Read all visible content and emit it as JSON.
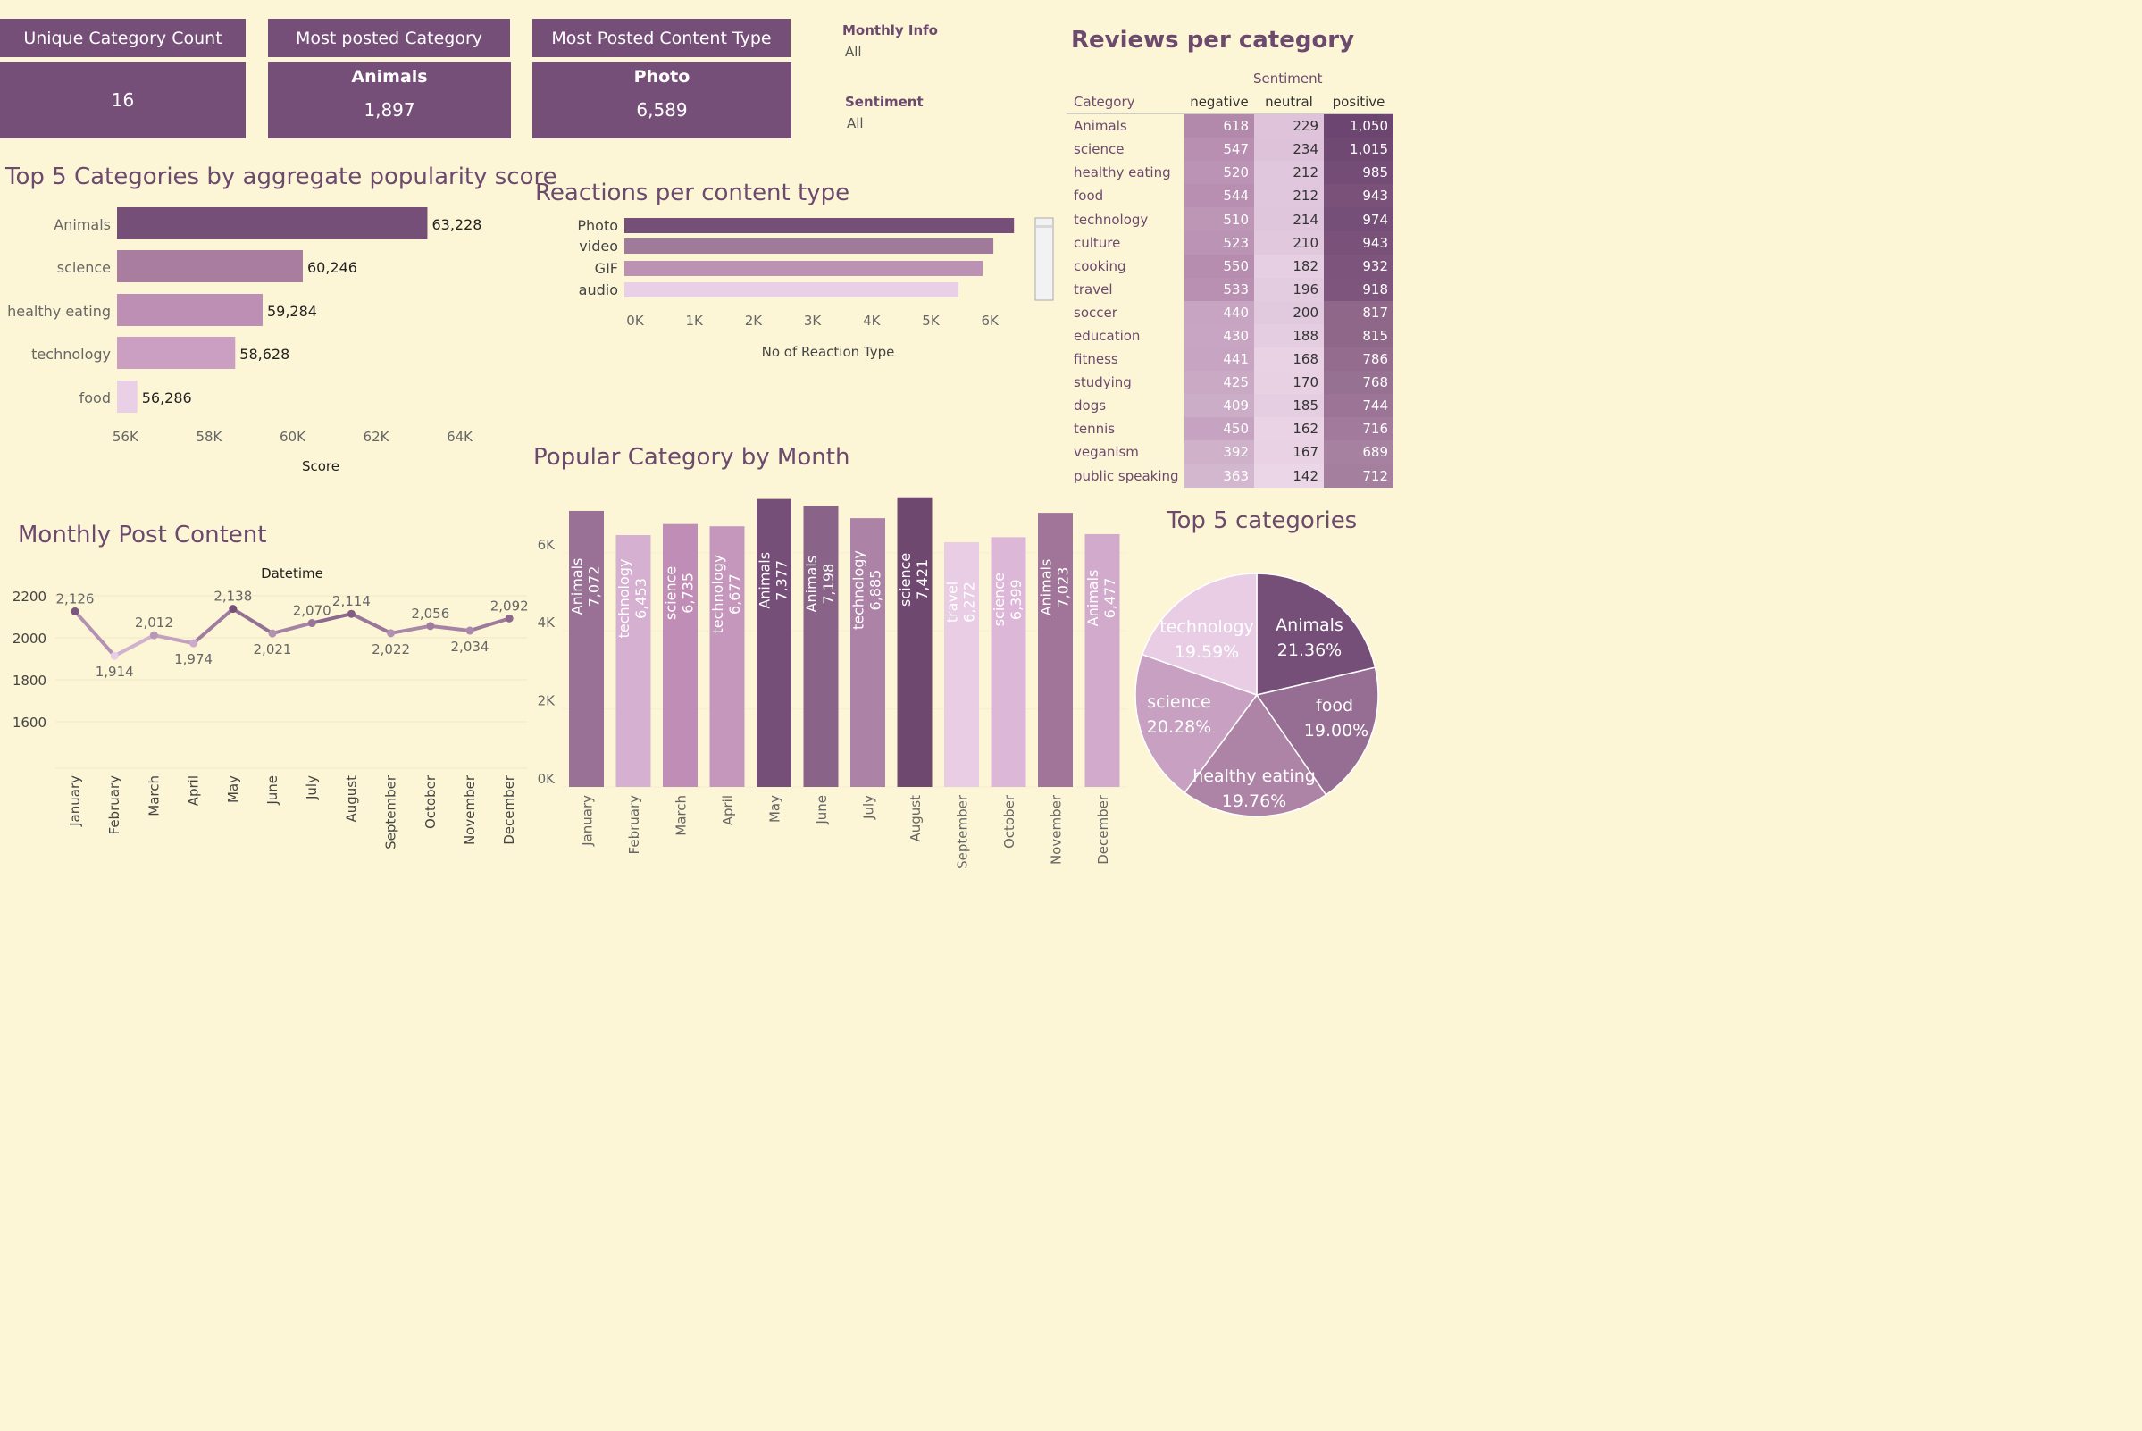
{
  "kpis": [
    {
      "header": "Unique Category Count",
      "label": "",
      "value": "16"
    },
    {
      "header": "Most posted Category",
      "label": "Animals",
      "value": "1,897"
    },
    {
      "header": "Most Posted Content Type",
      "label": "Photo",
      "value": "6,589"
    }
  ],
  "filters": [
    {
      "label": "Monthly Info",
      "value": "All"
    },
    {
      "label": "Sentiment",
      "value": "All"
    }
  ],
  "colors": {
    "background": "#fdf6d6",
    "dark": "#754f78",
    "title": "#6c4a6e",
    "light": "#e9cde5"
  },
  "chart_data": [
    {
      "id": "top5",
      "type": "bar",
      "orientation": "horizontal",
      "title": "Top 5 Categories by aggregate popularity score",
      "xlabel": "Score",
      "categories": [
        "Animals",
        "science",
        "healthy eating",
        "technology",
        "food"
      ],
      "values": [
        63228,
        60246,
        59284,
        58628,
        56286
      ],
      "value_labels": [
        "63,228",
        "60,246",
        "59,284",
        "58,628",
        "56,286"
      ],
      "xlim": [
        55800,
        64800
      ],
      "ticks": [
        56000,
        58000,
        60000,
        62000,
        64000
      ],
      "tick_labels": [
        "56K",
        "58K",
        "60K",
        "62K",
        "64K"
      ],
      "colors": [
        "#754f78",
        "#a87d9f",
        "#bd8fb4",
        "#cb9fc2",
        "#ead0e6"
      ]
    },
    {
      "id": "reactions",
      "type": "bar",
      "orientation": "horizontal",
      "title": "Reactions per content type",
      "xlabel": "No of Reaction Type",
      "categories": [
        "Photo",
        "video",
        "GIF",
        "audio"
      ],
      "values": [
        6589,
        6240,
        6060,
        5650
      ],
      "xlim": [
        0,
        6900
      ],
      "ticks": [
        0,
        1000,
        2000,
        3000,
        4000,
        5000,
        6000
      ],
      "tick_labels": [
        "0K",
        "1K",
        "2K",
        "3K",
        "4K",
        "5K",
        "6K"
      ],
      "colors": [
        "#754f78",
        "#a07a9b",
        "#bb92b3",
        "#ead0e6"
      ]
    },
    {
      "id": "reviews",
      "type": "table",
      "title": "Reviews per category",
      "column_group": "Sentiment",
      "columns": [
        "Category",
        "negative",
        "neutral",
        "positive"
      ],
      "rows": [
        [
          "Animals",
          "618",
          "229",
          "1,050"
        ],
        [
          "science",
          "547",
          "234",
          "1,015"
        ],
        [
          "healthy eating",
          "520",
          "212",
          "985"
        ],
        [
          "food",
          "544",
          "212",
          "943"
        ],
        [
          "technology",
          "510",
          "214",
          "974"
        ],
        [
          "culture",
          "523",
          "210",
          "943"
        ],
        [
          "cooking",
          "550",
          "182",
          "932"
        ],
        [
          "travel",
          "533",
          "196",
          "918"
        ],
        [
          "soccer",
          "440",
          "200",
          "817"
        ],
        [
          "education",
          "430",
          "188",
          "815"
        ],
        [
          "fitness",
          "441",
          "168",
          "786"
        ],
        [
          "studying",
          "425",
          "170",
          "768"
        ],
        [
          "dogs",
          "409",
          "185",
          "744"
        ],
        [
          "tennis",
          "450",
          "162",
          "716"
        ],
        [
          "veganism",
          "392",
          "167",
          "689"
        ],
        [
          "public speaking",
          "363",
          "142",
          "712"
        ]
      ]
    },
    {
      "id": "monthly",
      "type": "line",
      "title": "Monthly Post Content",
      "xlabel": "Datetime",
      "x": [
        "January",
        "February",
        "March",
        "April",
        "May",
        "June",
        "July",
        "August",
        "September",
        "October",
        "November",
        "December"
      ],
      "values": [
        2126,
        1914,
        2012,
        1974,
        2138,
        2021,
        2070,
        2114,
        2022,
        2056,
        2034,
        2092
      ],
      "value_labels": [
        "2,126",
        "1,914",
        "2,012",
        "1,974",
        "2,138",
        "2,021",
        "2,070",
        "2,114",
        "2,022",
        "2,056",
        "2,034",
        "2,092"
      ],
      "ylim": [
        1510,
        2250
      ],
      "ticks": [
        1600,
        1800,
        2000,
        2200
      ],
      "tick_labels": [
        "1600",
        "1800",
        "2000",
        "2200"
      ],
      "grid": true
    },
    {
      "id": "popular",
      "type": "bar",
      "title": "Popular Category by Month",
      "categories": [
        "January",
        "February",
        "March",
        "April",
        "May",
        "June",
        "July",
        "August",
        "September",
        "October",
        "November",
        "December"
      ],
      "bar_categories": [
        "Animals",
        "technology",
        "science",
        "technology",
        "Animals",
        "Animals",
        "technology",
        "science",
        "travel",
        "science",
        "Animals",
        "Animals"
      ],
      "values": [
        7072,
        6453,
        6735,
        6677,
        7377,
        7198,
        6885,
        7421,
        6272,
        6399,
        7023,
        6477
      ],
      "value_labels": [
        "7,072",
        "6,453",
        "6,735",
        "6,677",
        "7,377",
        "7,198",
        "6,885",
        "7,421",
        "6,272",
        "6,399",
        "7,023",
        "6,477"
      ],
      "ylim": [
        0,
        7600
      ],
      "ticks": [
        0,
        2000,
        4000,
        6000
      ],
      "tick_labels": [
        "0K",
        "2K",
        "4K",
        "6K"
      ],
      "colors": [
        "#9a7196",
        "#d6b0d0",
        "#bf8db5",
        "#c597bd",
        "#754f78",
        "#8a6488",
        "#ad82a7",
        "#6f4870",
        "#e8cde5",
        "#dcb7d7",
        "#a07599",
        "#d2aacc"
      ]
    },
    {
      "id": "pie",
      "type": "pie",
      "title": "Top 5 categories",
      "labels": [
        "Animals",
        "food",
        "healthy eating",
        "science",
        "technology"
      ],
      "values": [
        21.36,
        19.0,
        19.76,
        20.28,
        19.59
      ],
      "value_labels": [
        "21.36%",
        "19.00%",
        "19.76%",
        "20.28%",
        "19.59%"
      ],
      "colors": [
        "#754f78",
        "#976e93",
        "#ad84a6",
        "#c8a0c2",
        "#e8cde5"
      ]
    }
  ]
}
